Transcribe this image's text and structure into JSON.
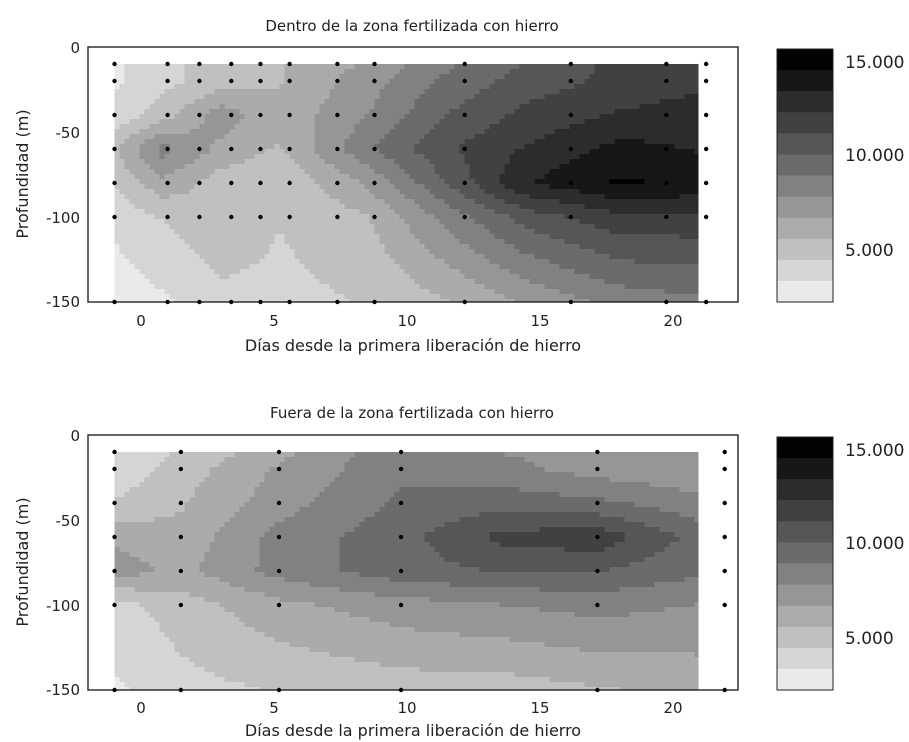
{
  "chart_data": [
    {
      "type": "heatmap",
      "title": "Dentro de la zona fertilizada con hierro",
      "xlabel": "Días desde la primera liberación de hierro",
      "ylabel": "Profundidad (m)",
      "xlim": [
        -2,
        22.5
      ],
      "ylim": [
        -150,
        0
      ],
      "xticks": [
        "0",
        "5",
        "10",
        "15",
        "20"
      ],
      "yticks": [
        "0",
        "-50",
        "-100",
        "-150"
      ],
      "x": [
        -1,
        0.8,
        3,
        5.2,
        8.5,
        11.5,
        14.5,
        18,
        21
      ],
      "y": [
        -10,
        -20,
        -40,
        -60,
        -80,
        -100,
        -150
      ],
      "z": [
        [
          2.5,
          3.5,
          4.5,
          5,
          6.5,
          8.5,
          10,
          11.5,
          12
        ],
        [
          2.5,
          3.5,
          4.5,
          5,
          7,
          9,
          10.5,
          11.5,
          12
        ],
        [
          3,
          4.5,
          7,
          5.5,
          7.5,
          10,
          11.5,
          12.5,
          13
        ],
        [
          5,
          8,
          6,
          5,
          8.5,
          11,
          12.5,
          14,
          13.5
        ],
        [
          4,
          6,
          4.5,
          4,
          6.5,
          10,
          13.5,
          15,
          14.5
        ],
        [
          3,
          4,
          5,
          4,
          5,
          8,
          10.5,
          12,
          12
        ],
        [
          2,
          2.5,
          3.5,
          3.5,
          4,
          5,
          6.5,
          8,
          8.5
        ]
      ],
      "sample_x": [
        -1,
        1,
        2.2,
        3.4,
        4.5,
        5.6,
        7.4,
        8.8,
        12.2,
        16.2,
        19.8,
        21.3
      ],
      "sample_y": [
        -10,
        -20,
        -40,
        -60,
        -80,
        -100,
        -150
      ],
      "colorbar": {
        "ticks": [
          "15.000",
          "10.000",
          "5.000"
        ],
        "levels": 12
      }
    },
    {
      "type": "heatmap",
      "title": "Fuera de la zona fertilizada con hierro",
      "xlabel": "Días desde la primera liberación de hierro",
      "ylabel": "Profundidad (m)",
      "xlim": [
        -2,
        22.5
      ],
      "ylim": [
        -150,
        0
      ],
      "xticks": [
        "0",
        "5",
        "10",
        "15",
        "20"
      ],
      "yticks": [
        "0",
        "-50",
        "-100",
        "-150"
      ],
      "x": [
        -1,
        1.5,
        5.2,
        9.8,
        13.5,
        17.2,
        21
      ],
      "y": [
        -10,
        -20,
        -40,
        -60,
        -80,
        -100,
        -150
      ],
      "z": [
        [
          3,
          4,
          6,
          8.5,
          7.5,
          7,
          6.5
        ],
        [
          3,
          4.5,
          6.5,
          8.5,
          8,
          7,
          6.5
        ],
        [
          4,
          5,
          7,
          9,
          9.5,
          9,
          8
        ],
        [
          6,
          5.5,
          8,
          9.5,
          11.5,
          12,
          9.5
        ],
        [
          7,
          6,
          8,
          9.5,
          10,
          10,
          9
        ],
        [
          3.5,
          4.5,
          6,
          7,
          7.5,
          8,
          7.5
        ],
        [
          2.5,
          3.5,
          4,
          4.5,
          4.5,
          5,
          5.5
        ]
      ],
      "sample_x": [
        -1,
        1.5,
        5.2,
        9.8,
        17.2,
        22
      ],
      "sample_y": [
        -10,
        -20,
        -40,
        -60,
        -80,
        -100,
        -150
      ],
      "colorbar": {
        "ticks": [
          "15.000",
          "10.000",
          "5.000"
        ],
        "levels": 12
      }
    }
  ]
}
